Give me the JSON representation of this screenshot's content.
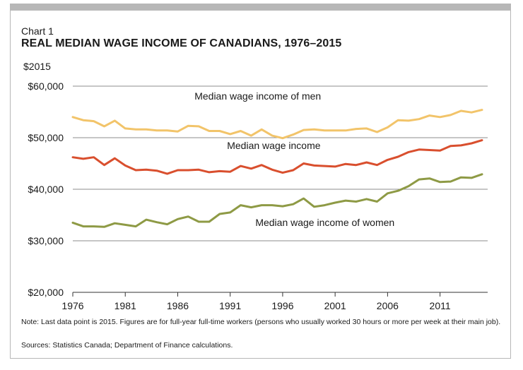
{
  "header": {
    "chart_label": "Chart 1",
    "title": "REAL MEDIAN WAGE INCOME OF CANADIANS, 1976–2015",
    "unit": "$2015"
  },
  "footer": {
    "note": "Note: Last data point is 2015. Figures are for full-year full-time workers (persons who usually worked 30 hours or more per week at their main job).",
    "source": "Sources: Statistics Canada; Department of Finance calculations."
  },
  "colors": {
    "men": "#f2c46a",
    "all": "#d94f2e",
    "women": "#8e9a45",
    "grid": "#8c8c8c",
    "text": "#1a1a1a"
  },
  "chart_data": {
    "type": "line",
    "title": "REAL MEDIAN WAGE INCOME OF CANADIANS, 1976–2015",
    "ylabel": "$2015",
    "xlabel": "",
    "x": [
      1976,
      1977,
      1978,
      1979,
      1980,
      1981,
      1982,
      1983,
      1984,
      1985,
      1986,
      1987,
      1988,
      1989,
      1990,
      1991,
      1992,
      1993,
      1994,
      1995,
      1996,
      1997,
      1998,
      1999,
      2000,
      2001,
      2002,
      2003,
      2004,
      2005,
      2006,
      2007,
      2008,
      2009,
      2010,
      2011,
      2012,
      2013,
      2014,
      2015
    ],
    "x_ticks": [
      "1976",
      "1981",
      "1986",
      "1991",
      "1996",
      "2001",
      "2006",
      "2011"
    ],
    "x_tick_values": [
      1976,
      1981,
      1986,
      1991,
      1996,
      2001,
      2006,
      2011
    ],
    "xlim": [
      1976,
      2015
    ],
    "ylim": [
      20000,
      60000
    ],
    "y_ticks": [
      "$20,000",
      "$30,000",
      "$40,000",
      "$50,000",
      "$60,000"
    ],
    "y_tick_values": [
      20000,
      30000,
      40000,
      50000,
      60000
    ],
    "grid": "horizontal",
    "series": [
      {
        "name": "Median wage income of men",
        "color_key": "men",
        "label_year": 1987.6,
        "label_value": 57400,
        "values": [
          54000,
          53400,
          53200,
          52200,
          53300,
          51800,
          51600,
          51600,
          51400,
          51400,
          51200,
          52300,
          52200,
          51300,
          51300,
          50700,
          51300,
          50400,
          51600,
          50400,
          49900,
          50600,
          51500,
          51600,
          51400,
          51400,
          51400,
          51700,
          51800,
          51100,
          52000,
          53400,
          53300,
          53600,
          54300,
          54000,
          54400,
          55200,
          54900,
          55400
        ]
      },
      {
        "name": "Median wage income",
        "color_key": "all",
        "label_year": 1990.7,
        "label_value": 47800,
        "values": [
          46200,
          45900,
          46200,
          44700,
          46000,
          44600,
          43700,
          43800,
          43600,
          43000,
          43700,
          43700,
          43800,
          43300,
          43500,
          43400,
          44500,
          44000,
          44700,
          43800,
          43200,
          43700,
          45000,
          44600,
          44500,
          44400,
          44900,
          44700,
          45200,
          44700,
          45700,
          46300,
          47200,
          47700,
          47600,
          47500,
          48400,
          48500,
          48900,
          49500
        ]
      },
      {
        "name": "Median wage income of women",
        "color_key": "women",
        "label_year": 1993.4,
        "label_value": 32900,
        "values": [
          33500,
          32800,
          32800,
          32700,
          33400,
          33100,
          32800,
          34100,
          33600,
          33200,
          34200,
          34700,
          33700,
          33700,
          35200,
          35500,
          36900,
          36500,
          36900,
          36900,
          36700,
          37100,
          38200,
          36600,
          36900,
          37400,
          37800,
          37600,
          38100,
          37600,
          39200,
          39700,
          40600,
          41900,
          42100,
          41400,
          41500,
          42300,
          42200,
          42900
        ]
      }
    ]
  }
}
